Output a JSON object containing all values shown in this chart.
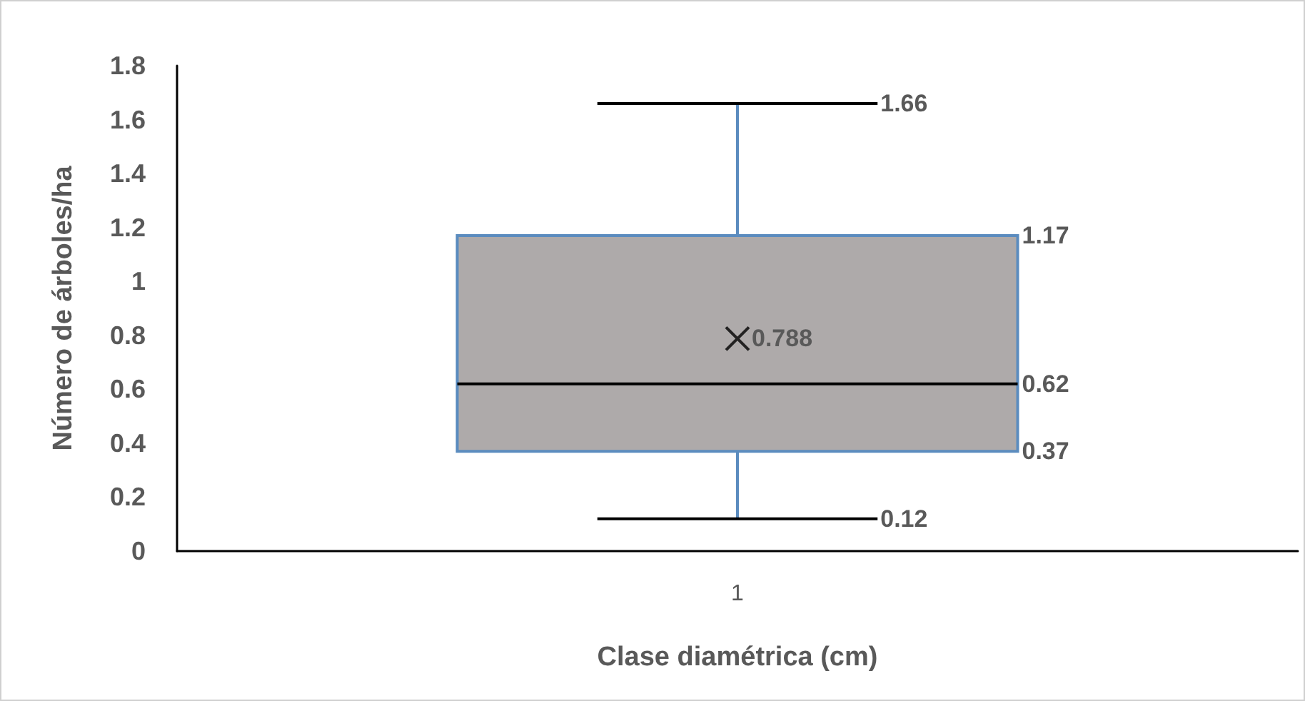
{
  "chart_data": {
    "type": "box",
    "xlabel": "Clase diamétrica (cm)",
    "ylabel": "Número de árboles/ha",
    "categories": [
      "1"
    ],
    "boxes": [
      {
        "low": 0.12,
        "q1": 0.37,
        "median": 0.62,
        "q3": 1.17,
        "high": 1.66,
        "mean": 0.788
      }
    ],
    "color": "#aeaaaa",
    "ylim": [
      0,
      1.8
    ],
    "yticks": [
      0,
      0.2,
      0.4,
      0.6,
      0.8,
      1,
      1.2,
      1.4,
      1.6,
      1.8
    ],
    "annotations": [
      "1.66",
      "1.17",
      "0.788",
      "0.62",
      "0.37",
      "0.12"
    ]
  }
}
